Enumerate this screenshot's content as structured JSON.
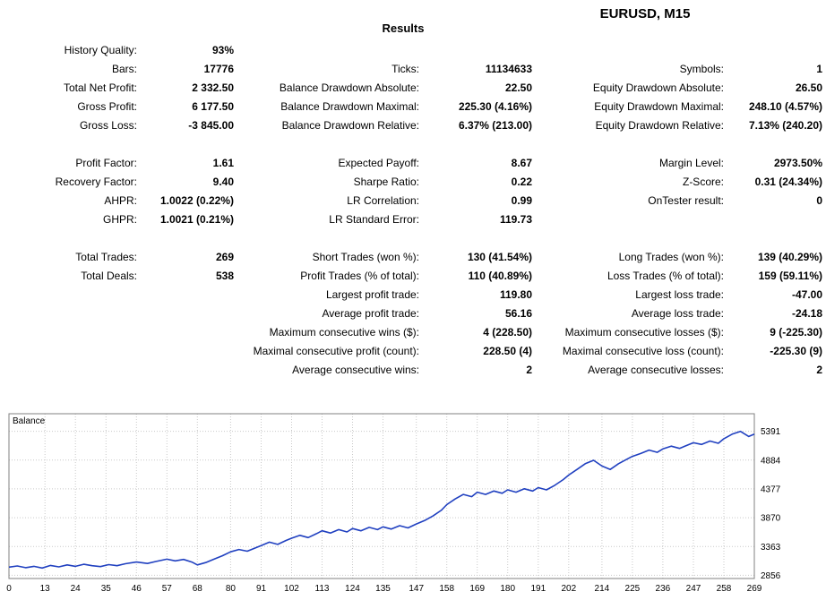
{
  "header": {
    "symbol_title": "EURUSD, M15",
    "results_title": "Results"
  },
  "stats": {
    "rows": [
      [
        {
          "label": "History Quality:",
          "value": "93%"
        },
        null,
        null
      ],
      [
        {
          "label": "Bars:",
          "value": "17776"
        },
        {
          "label": "Ticks:",
          "value": "11134633"
        },
        {
          "label": "Symbols:",
          "value": "1"
        }
      ],
      [
        {
          "label": "Total Net Profit:",
          "value": "2 332.50"
        },
        {
          "label": "Balance Drawdown Absolute:",
          "value": "22.50"
        },
        {
          "label": "Equity Drawdown Absolute:",
          "value": "26.50"
        }
      ],
      [
        {
          "label": "Gross Profit:",
          "value": "6 177.50"
        },
        {
          "label": "Balance Drawdown Maximal:",
          "value": "225.30 (4.16%)"
        },
        {
          "label": "Equity Drawdown Maximal:",
          "value": "248.10 (4.57%)"
        }
      ],
      [
        {
          "label": "Gross Loss:",
          "value": "-3 845.00"
        },
        {
          "label": "Balance Drawdown Relative:",
          "value": "6.37% (213.00)"
        },
        {
          "label": "Equity Drawdown Relative:",
          "value": "7.13% (240.20)"
        }
      ],
      "spacer",
      [
        {
          "label": "Profit Factor:",
          "value": "1.61"
        },
        {
          "label": "Expected Payoff:",
          "value": "8.67"
        },
        {
          "label": "Margin Level:",
          "value": "2973.50%"
        }
      ],
      [
        {
          "label": "Recovery Factor:",
          "value": "9.40"
        },
        {
          "label": "Sharpe Ratio:",
          "value": "0.22"
        },
        {
          "label": "Z-Score:",
          "value": "0.31 (24.34%)"
        }
      ],
      [
        {
          "label": "AHPR:",
          "value": "1.0022 (0.22%)"
        },
        {
          "label": "LR Correlation:",
          "value": "0.99"
        },
        {
          "label": "OnTester result:",
          "value": "0"
        }
      ],
      [
        {
          "label": "GHPR:",
          "value": "1.0021 (0.21%)"
        },
        {
          "label": "LR Standard Error:",
          "value": "119.73"
        },
        null
      ],
      "spacer",
      [
        {
          "label": "Total Trades:",
          "value": "269"
        },
        {
          "label": "Short Trades (won %):",
          "value": "130 (41.54%)"
        },
        {
          "label": "Long Trades (won %):",
          "value": "139 (40.29%)"
        }
      ],
      [
        {
          "label": "Total Deals:",
          "value": "538"
        },
        {
          "label": "Profit Trades (% of total):",
          "value": "110 (40.89%)"
        },
        {
          "label": "Loss Trades (% of total):",
          "value": "159 (59.11%)"
        }
      ],
      [
        null,
        {
          "label": "Largest profit trade:",
          "value": "119.80"
        },
        {
          "label": "Largest loss trade:",
          "value": "-47.00"
        }
      ],
      [
        null,
        {
          "label": "Average profit trade:",
          "value": "56.16"
        },
        {
          "label": "Average loss trade:",
          "value": "-24.18"
        }
      ],
      [
        null,
        {
          "label": "Maximum consecutive wins ($):",
          "value": "4 (228.50)"
        },
        {
          "label": "Maximum consecutive losses ($):",
          "value": "9 (-225.30)"
        }
      ],
      [
        null,
        {
          "label": "Maximal consecutive profit (count):",
          "value": "228.50 (4)"
        },
        {
          "label": "Maximal consecutive loss (count):",
          "value": "-225.30 (9)"
        }
      ],
      [
        null,
        {
          "label": "Average consecutive wins:",
          "value": "2"
        },
        {
          "label": "Average consecutive losses:",
          "value": "2"
        }
      ]
    ]
  },
  "chart_data": {
    "type": "line",
    "title": "Balance",
    "legend": "Balance",
    "series_name": "Balance",
    "line_color": "#2040c0",
    "grid": true,
    "legend_position": "top-left",
    "xlim": [
      0,
      269
    ],
    "ylim": [
      2800,
      5700
    ],
    "x_ticks": [
      0,
      13,
      24,
      35,
      46,
      57,
      68,
      80,
      91,
      102,
      113,
      124,
      135,
      147,
      158,
      169,
      180,
      191,
      202,
      214,
      225,
      236,
      247,
      258,
      269
    ],
    "y_ticks": [
      5391,
      4884,
      4377,
      3870,
      3363,
      2856
    ],
    "x": [
      0,
      3,
      6,
      9,
      12,
      15,
      18,
      21,
      24,
      27,
      30,
      33,
      36,
      39,
      42,
      46,
      50,
      53,
      57,
      60,
      63,
      66,
      68,
      71,
      74,
      77,
      80,
      83,
      86,
      89,
      91,
      94,
      97,
      100,
      102,
      105,
      108,
      111,
      113,
      116,
      119,
      122,
      124,
      127,
      130,
      133,
      135,
      138,
      141,
      144,
      147,
      150,
      153,
      156,
      158,
      161,
      164,
      167,
      169,
      172,
      175,
      178,
      180,
      183,
      186,
      189,
      191,
      194,
      197,
      200,
      202,
      205,
      208,
      211,
      214,
      217,
      220,
      223,
      225,
      228,
      231,
      234,
      236,
      239,
      242,
      245,
      247,
      250,
      253,
      256,
      258,
      261,
      264,
      267,
      269
    ],
    "y": [
      3000,
      3020,
      2990,
      3015,
      2985,
      3030,
      3005,
      3040,
      3015,
      3050,
      3025,
      3010,
      3045,
      3025,
      3060,
      3090,
      3065,
      3100,
      3140,
      3110,
      3135,
      3090,
      3040,
      3080,
      3140,
      3200,
      3270,
      3310,
      3280,
      3340,
      3380,
      3440,
      3400,
      3470,
      3510,
      3560,
      3520,
      3590,
      3640,
      3600,
      3660,
      3620,
      3680,
      3640,
      3700,
      3660,
      3710,
      3670,
      3730,
      3690,
      3760,
      3820,
      3900,
      4000,
      4100,
      4200,
      4280,
      4240,
      4320,
      4280,
      4340,
      4300,
      4360,
      4320,
      4380,
      4340,
      4400,
      4360,
      4440,
      4540,
      4620,
      4720,
      4820,
      4880,
      4780,
      4720,
      4820,
      4900,
      4950,
      5000,
      5060,
      5020,
      5080,
      5130,
      5090,
      5150,
      5190,
      5160,
      5220,
      5180,
      5260,
      5340,
      5390,
      5300,
      5340
    ]
  }
}
